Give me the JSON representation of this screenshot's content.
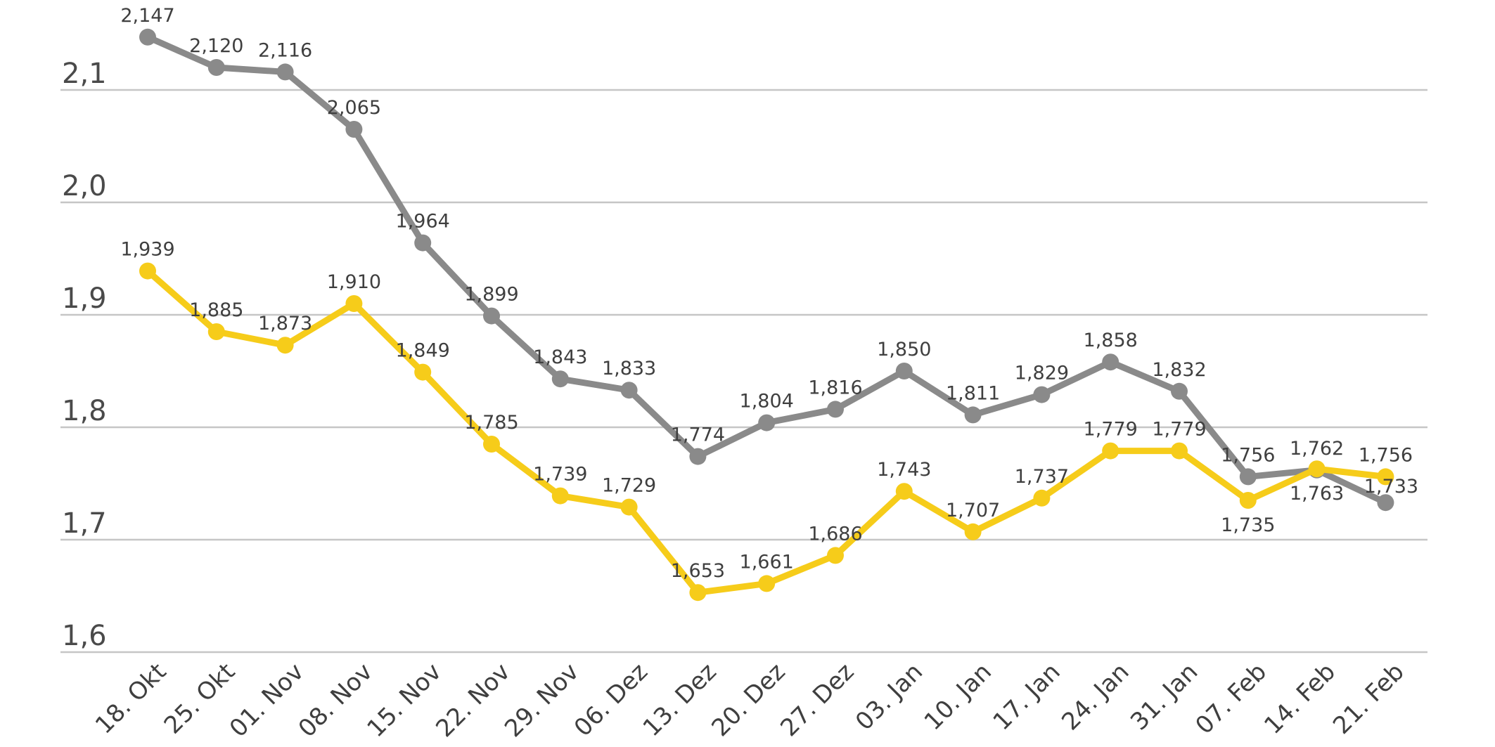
{
  "chart_data": {
    "type": "line",
    "title": "",
    "xlabel": "",
    "ylabel": "",
    "ylim": [
      1.6,
      2.1
    ],
    "grid": true,
    "legend": "none",
    "yticks": [
      {
        "value": 1.6,
        "label": "1,6"
      },
      {
        "value": 1.7,
        "label": "1,7"
      },
      {
        "value": 1.8,
        "label": "1,8"
      },
      {
        "value": 1.9,
        "label": "1,9"
      },
      {
        "value": 2.0,
        "label": "2,0"
      },
      {
        "value": 2.1,
        "label": "2,1"
      }
    ],
    "categories": [
      "18. Okt",
      "25. Okt",
      "01. Nov",
      "08. Nov",
      "15. Nov",
      "22. Nov",
      "29. Nov",
      "06. Dez",
      "13. Dez",
      "20. Dez",
      "27. Dez",
      "03. Jan",
      "10. Jan",
      "17. Jan",
      "24. Jan",
      "31. Jan",
      "07. Feb",
      "14. Feb",
      "21. Feb"
    ],
    "series": [
      {
        "name": "gray",
        "color": "#8a8a8a",
        "values": [
          2.147,
          2.12,
          2.116,
          2.065,
          1.964,
          1.899,
          1.843,
          1.833,
          1.774,
          1.804,
          1.816,
          1.85,
          1.811,
          1.829,
          1.858,
          1.832,
          1.756,
          1.762,
          1.733
        ],
        "labels": [
          "2,147",
          "2,120",
          "2,116",
          "2,065",
          "1,964",
          "1,899",
          "1,843",
          "1,833",
          "1,774",
          "1,804",
          "1,816",
          "1,850",
          "1,811",
          "1,829",
          "1,858",
          "1,832",
          "1,756",
          "1,762",
          "1,733"
        ],
        "label_positions": [
          "above",
          "above",
          "above",
          "above",
          "above",
          "above",
          "above",
          "above",
          "above",
          "above",
          "above",
          "above",
          "above",
          "above",
          "above",
          "above",
          "above",
          "above",
          "above-right"
        ]
      },
      {
        "name": "yellow",
        "color": "#f6cc1a",
        "values": [
          1.939,
          1.885,
          1.873,
          1.91,
          1.849,
          1.785,
          1.739,
          1.729,
          1.653,
          1.661,
          1.686,
          1.743,
          1.707,
          1.737,
          1.779,
          1.779,
          1.735,
          1.763,
          1.756
        ],
        "labels": [
          "1,939",
          "1,885",
          "1,873",
          "1,910",
          "1,849",
          "1,785",
          "1,739",
          "1,729",
          "1,653",
          "1,661",
          "1,686",
          "1,743",
          "1,707",
          "1,737",
          "1,779",
          "1,779",
          "1,735",
          "1,763",
          "1,756"
        ],
        "label_positions": [
          "above",
          "above",
          "above",
          "above",
          "above",
          "above",
          "above",
          "above",
          "above",
          "above",
          "above",
          "above",
          "above",
          "above",
          "above",
          "above",
          "below",
          "below",
          "above"
        ]
      }
    ]
  }
}
